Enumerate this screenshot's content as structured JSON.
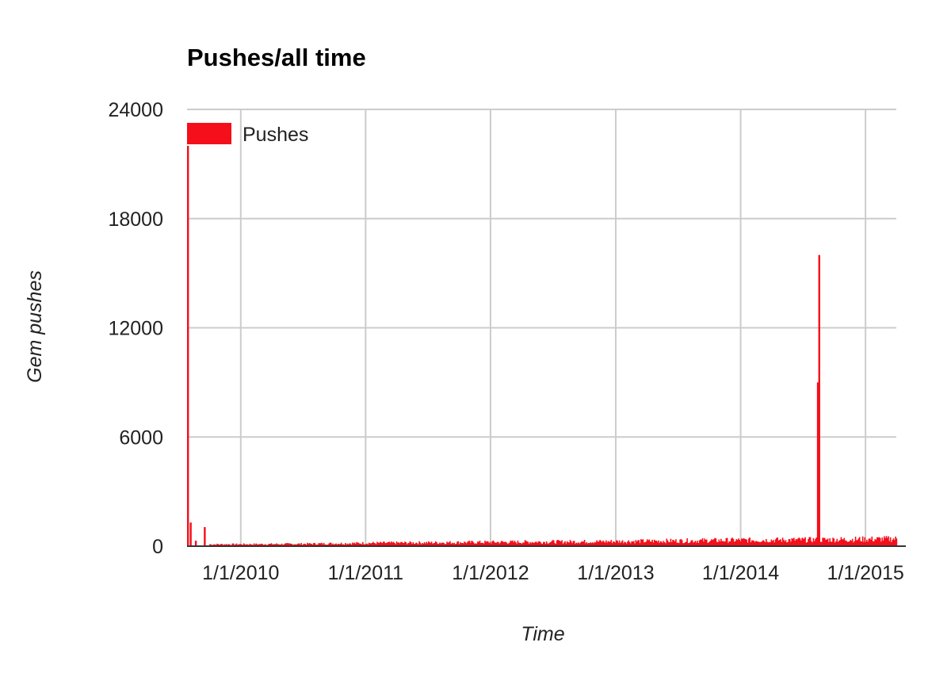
{
  "chart_data": {
    "type": "bar",
    "title": "Pushes/all time",
    "xlabel": "Time",
    "ylabel": "Gem pushes",
    "ylim": [
      0,
      24000
    ],
    "xlim": [
      "2009-07-28",
      "2015-04-01"
    ],
    "y_ticks": [
      "0",
      "6000",
      "12000",
      "18000",
      "24000"
    ],
    "x_ticks": [
      {
        "date": "2010-01-01",
        "label": "1/1/2010"
      },
      {
        "date": "2011-01-01",
        "label": "1/1/2011"
      },
      {
        "date": "2012-01-01",
        "label": "1/1/2012"
      },
      {
        "date": "2013-01-01",
        "label": "1/1/2013"
      },
      {
        "date": "2014-01-01",
        "label": "1/1/2014"
      },
      {
        "date": "2015-01-01",
        "label": "1/1/2015"
      }
    ],
    "grid": true,
    "legend": {
      "position": "top-left",
      "entries": [
        "Pushes"
      ]
    },
    "colors": {
      "series": "#f40f1a",
      "grid": "#cccccc",
      "axis": "#333333"
    },
    "series": [
      {
        "name": "Pushes",
        "spikes": [
          {
            "date": "2009-07-28",
            "value": 22000
          },
          {
            "date": "2009-08-05",
            "value": 1300
          },
          {
            "date": "2009-08-20",
            "value": 300
          },
          {
            "date": "2009-09-15",
            "value": 1050
          },
          {
            "date": "2014-08-12",
            "value": 9000
          },
          {
            "date": "2014-08-16",
            "value": 16000
          }
        ],
        "baseline": [
          {
            "date": "2009-10-01",
            "value": 100
          },
          {
            "date": "2010-06-01",
            "value": 120
          },
          {
            "date": "2011-01-01",
            "value": 170
          },
          {
            "date": "2012-01-01",
            "value": 220
          },
          {
            "date": "2013-01-01",
            "value": 260
          },
          {
            "date": "2014-01-01",
            "value": 330
          },
          {
            "date": "2014-08-01",
            "value": 350
          },
          {
            "date": "2015-01-01",
            "value": 380
          },
          {
            "date": "2015-04-01",
            "value": 400
          }
        ]
      }
    ]
  }
}
